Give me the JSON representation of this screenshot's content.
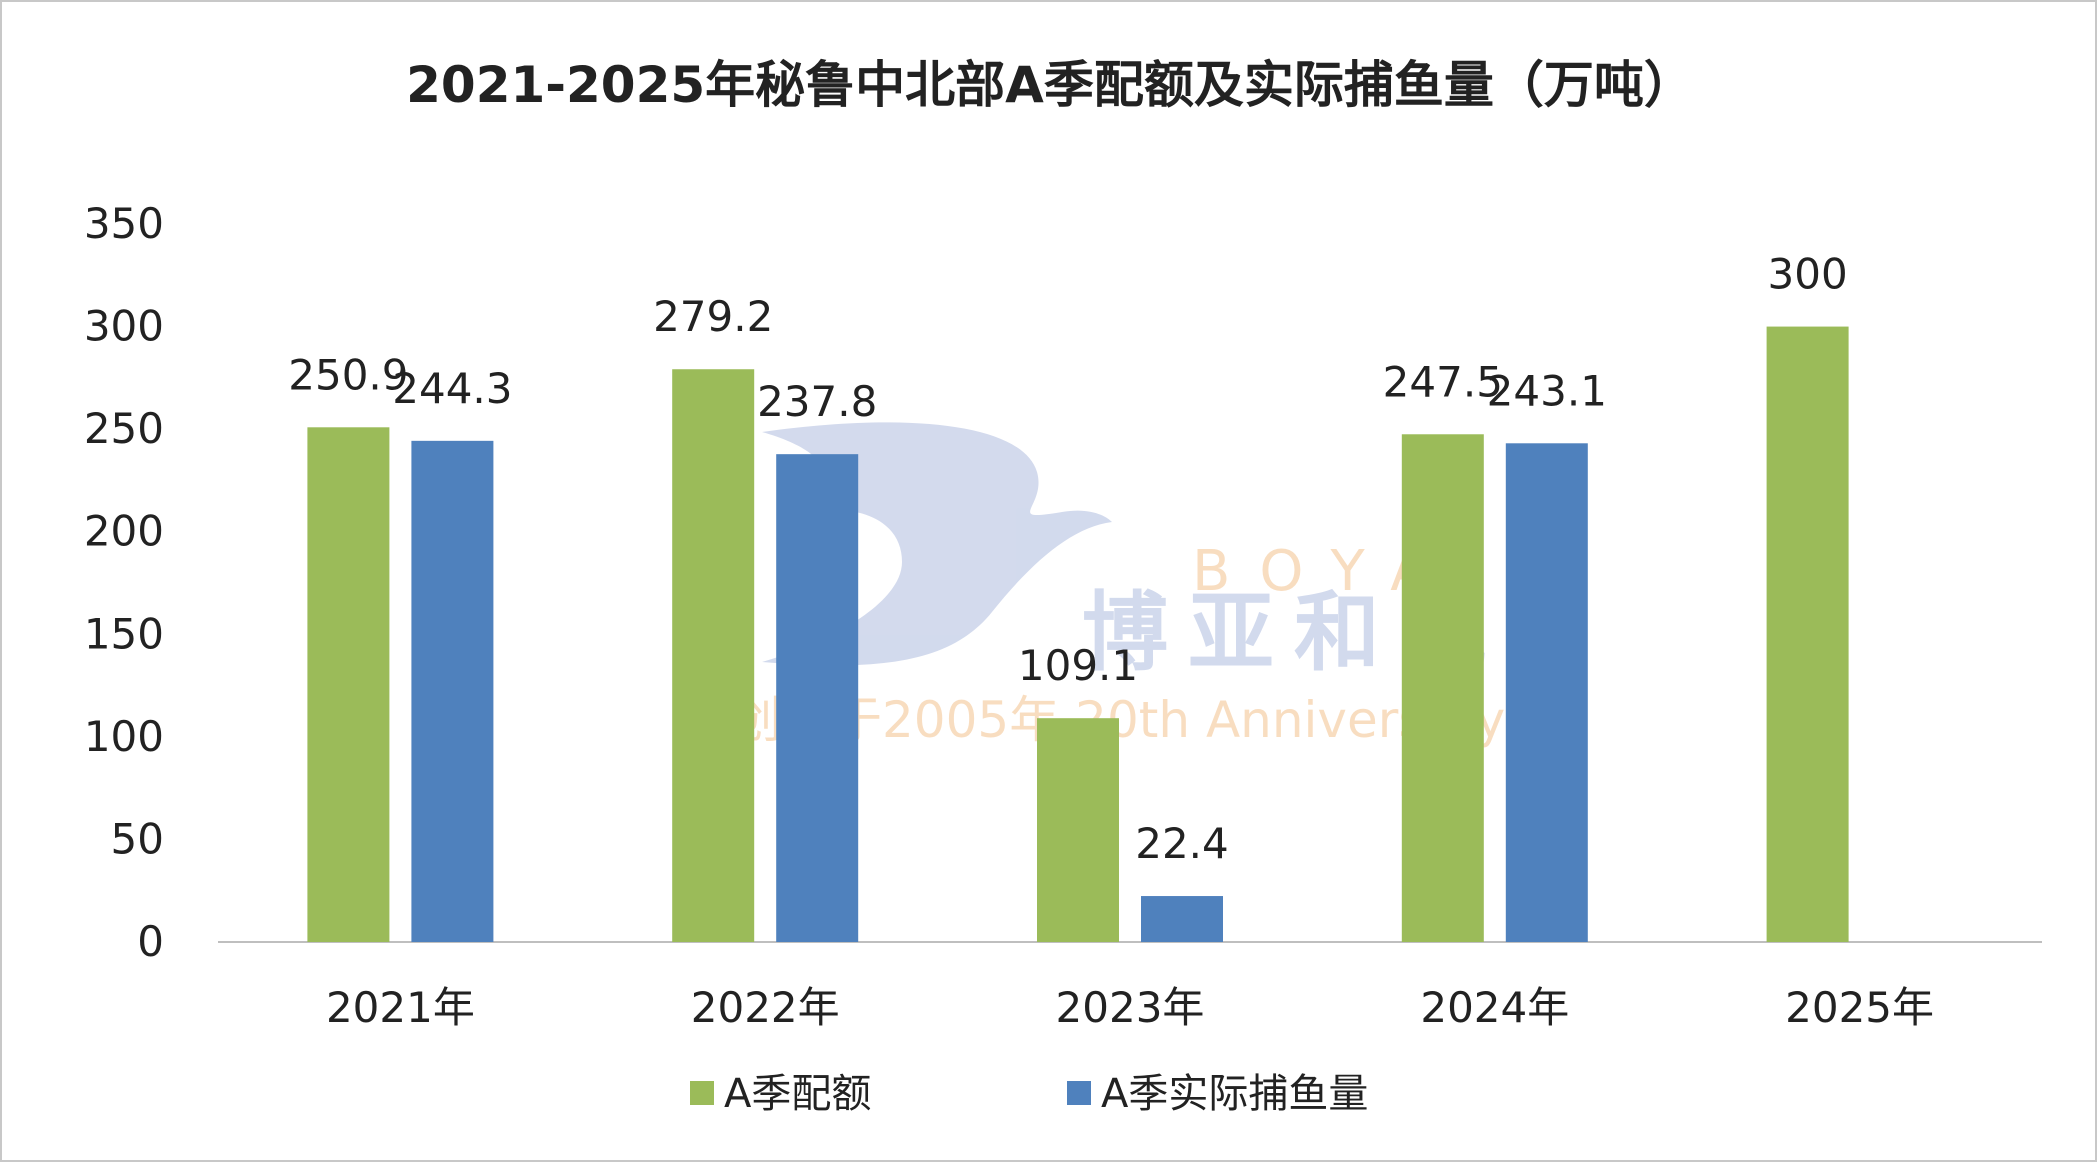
{
  "chart_data": {
    "type": "bar",
    "title": "2021-2025年秘鲁中北部A季配额及实际捕鱼量（万吨）",
    "categories": [
      "2021年",
      "2022年",
      "2023年",
      "2024年",
      "2025年"
    ],
    "series": [
      {
        "name": "A季配额",
        "values": [
          250.9,
          279.2,
          109.1,
          247.5,
          300
        ],
        "labels": [
          "250.9",
          "279.2",
          "109.1",
          "247.5",
          "300"
        ],
        "color": "#9bbb59"
      },
      {
        "name": "A季实际捕鱼量",
        "values": [
          244.3,
          237.8,
          22.4,
          243.1,
          null
        ],
        "labels": [
          "244.3",
          "237.8",
          "22.4",
          "243.1",
          null
        ],
        "color": "#4f81bd"
      }
    ],
    "ylim": [
      0,
      350
    ],
    "yticks": [
      0,
      50,
      100,
      150,
      200,
      250,
      300,
      350
    ],
    "grid": false,
    "legend_position": "bottom"
  },
  "watermark": {
    "brand": "BOYA",
    "name": "博亚和讯",
    "tagline": "创刊于2005年 20th Anniversary"
  }
}
